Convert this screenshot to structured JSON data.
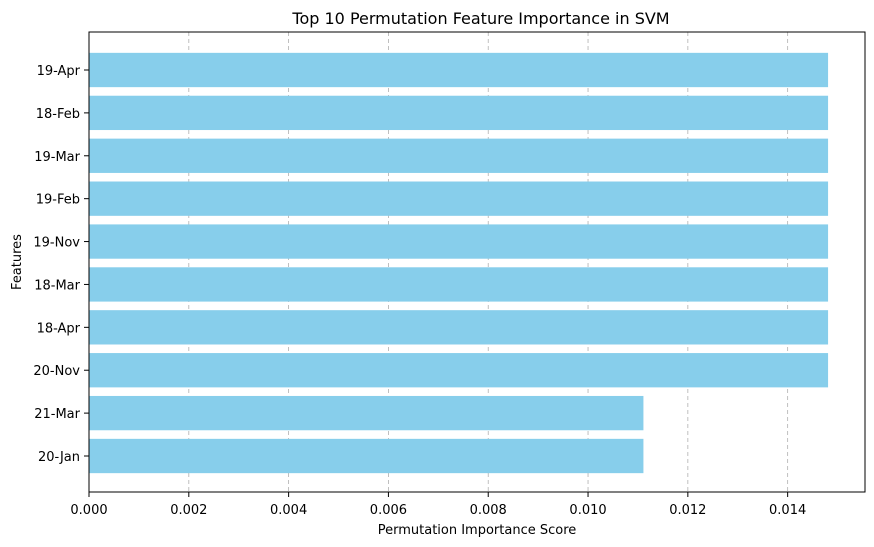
{
  "chart_data": {
    "type": "bar",
    "orientation": "horizontal",
    "title": "Top 10 Permutation Feature Importance in SVM",
    "xlabel": "Permutation Importance Score",
    "ylabel": "Features",
    "categories": [
      "19-Apr",
      "18-Feb",
      "19-Mar",
      "19-Feb",
      "19-Nov",
      "18-Mar",
      "18-Apr",
      "20-Nov",
      "21-Mar",
      "20-Jan"
    ],
    "values": [
      0.01481,
      0.01481,
      0.01481,
      0.01481,
      0.01481,
      0.01481,
      0.01481,
      0.01481,
      0.01111,
      0.01111
    ],
    "xlim": [
      0,
      0.01555
    ],
    "xticks": [
      0,
      0.002,
      0.004,
      0.006,
      0.008,
      0.01,
      0.012,
      0.014
    ],
    "xtick_labels": [
      "0.000",
      "0.002",
      "0.004",
      "0.006",
      "0.008",
      "0.010",
      "0.012",
      "0.014"
    ],
    "grid": "x-dashed",
    "bar_color": "#87ceeb"
  }
}
